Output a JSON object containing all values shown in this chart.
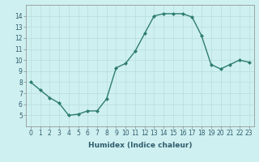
{
  "x": [
    0,
    1,
    2,
    3,
    4,
    5,
    6,
    7,
    8,
    9,
    10,
    11,
    12,
    13,
    14,
    15,
    16,
    17,
    18,
    19,
    20,
    21,
    22,
    23
  ],
  "y": [
    8.0,
    7.3,
    6.6,
    6.1,
    5.0,
    5.1,
    5.4,
    5.4,
    6.5,
    9.3,
    9.7,
    10.8,
    12.4,
    14.0,
    14.2,
    14.2,
    14.2,
    13.9,
    12.2,
    9.6,
    9.2,
    9.6,
    10.0,
    9.8
  ],
  "line_color": "#2e7d6e",
  "marker": "D",
  "marker_size": 2.0,
  "line_width": 1.0,
  "bg_color": "#cff0f0",
  "grid_color": "#b8dcdc",
  "xlabel": "Humidex (Indice chaleur)",
  "ylim": [
    4,
    15
  ],
  "xlim": [
    -0.5,
    23.5
  ],
  "yticks": [
    5,
    6,
    7,
    8,
    9,
    10,
    11,
    12,
    13,
    14
  ],
  "xticks": [
    0,
    1,
    2,
    3,
    4,
    5,
    6,
    7,
    8,
    9,
    10,
    11,
    12,
    13,
    14,
    15,
    16,
    17,
    18,
    19,
    20,
    21,
    22,
    23
  ],
  "tick_fontsize": 5.5,
  "label_fontsize": 6.5,
  "spine_color": "#888888"
}
